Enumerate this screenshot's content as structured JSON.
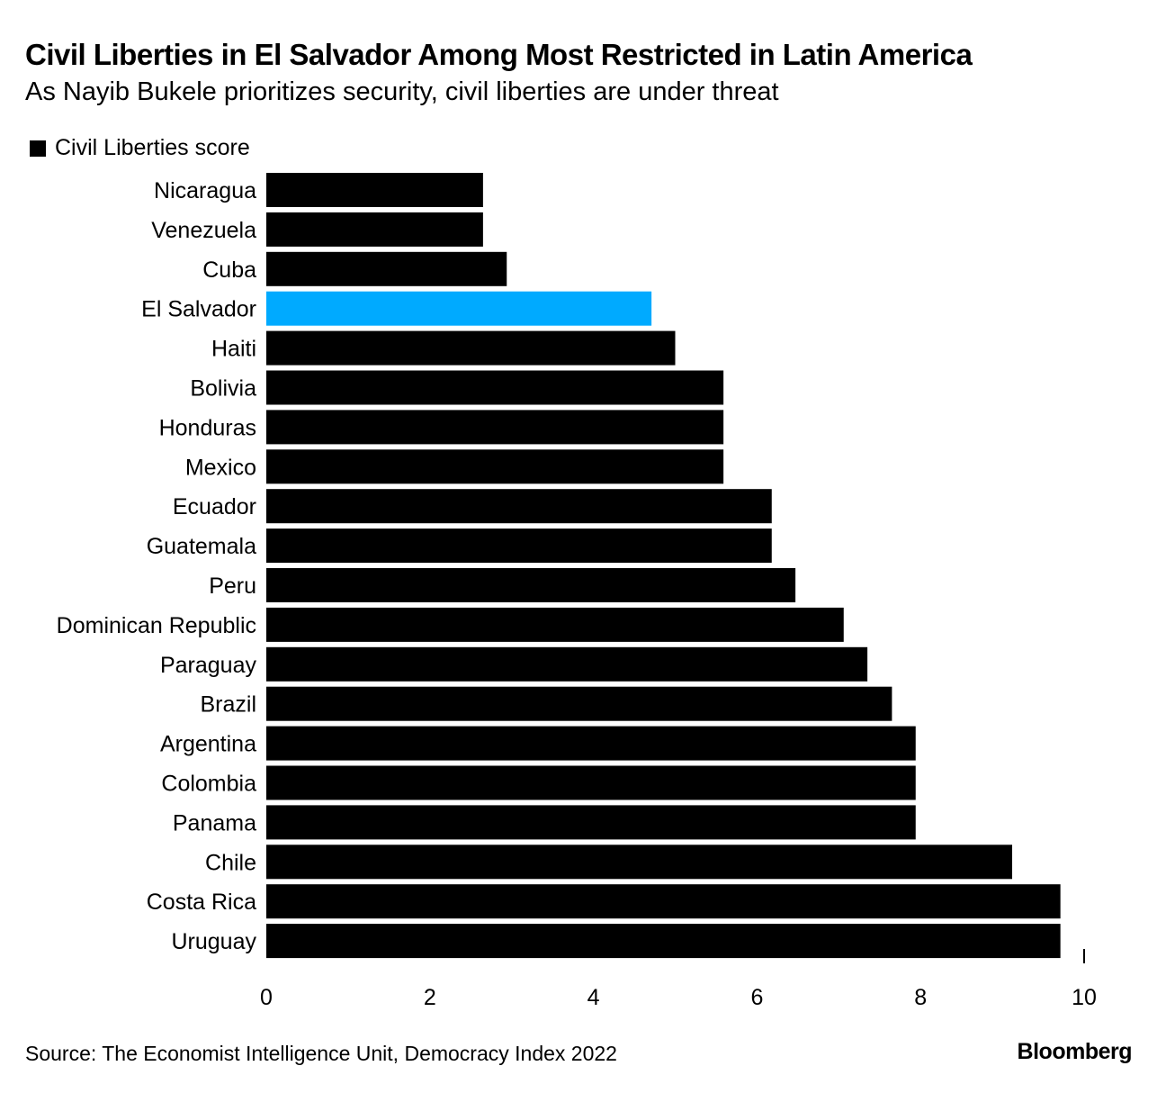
{
  "title": "Civil Liberties in El Salvador Among Most Restricted in Latin America",
  "subtitle": "As Nayib Bukele prioritizes security, civil liberties are under threat",
  "source": "Source: The Economist Intelligence Unit, Democracy Index 2022",
  "logo": "Bloomberg",
  "chart_data": {
    "type": "bar",
    "orientation": "horizontal",
    "title": "Civil Liberties in El Salvador Among Most Restricted in Latin America",
    "subtitle": "As Nayib Bukele prioritizes security, civil liberties are under threat",
    "legend": "top-left",
    "grid": false,
    "xlim": [
      0,
      10
    ],
    "xticks": [
      "0",
      "2",
      "4",
      "6",
      "8",
      "10"
    ],
    "categories": [
      "Nicaragua",
      "Venezuela",
      "Cuba",
      "El Salvador",
      "Haiti",
      "Bolivia",
      "Honduras",
      "Mexico",
      "Ecuador",
      "Guatemala",
      "Peru",
      "Dominican Republic",
      "Paraguay",
      "Brazil",
      "Argentina",
      "Colombia",
      "Panama",
      "Chile",
      "Costa Rica",
      "Uruguay"
    ],
    "series": [
      {
        "name": "Civil Liberties score",
        "values": [
          2.65,
          2.65,
          2.94,
          4.71,
          5.0,
          5.59,
          5.59,
          5.59,
          6.18,
          6.18,
          6.47,
          7.06,
          7.35,
          7.65,
          7.94,
          7.94,
          7.94,
          9.12,
          9.71,
          9.71
        ]
      }
    ],
    "colors": {
      "default": "#000000",
      "highlight": "#00aaff"
    },
    "highlight": "El Salvador"
  }
}
